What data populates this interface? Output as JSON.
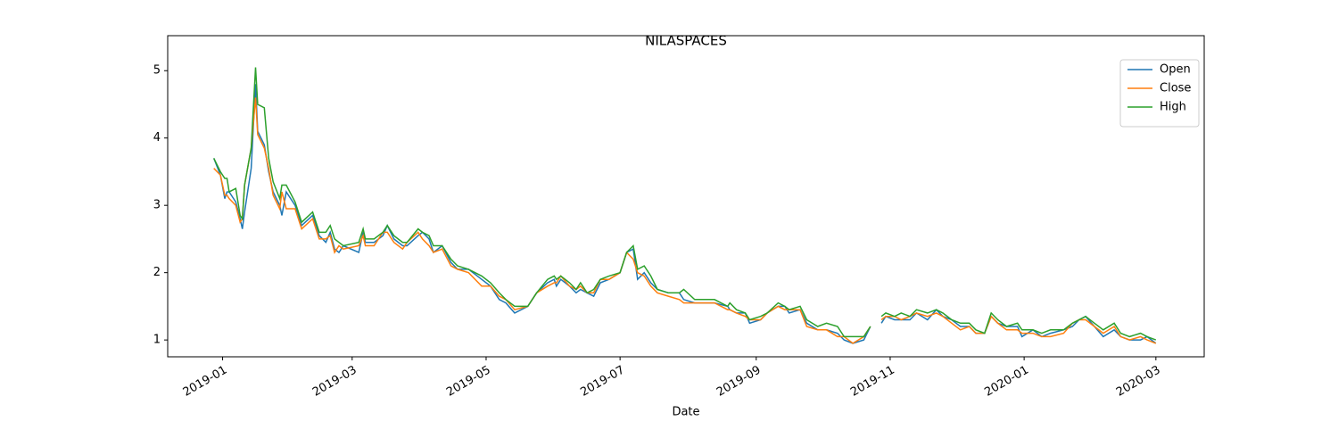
{
  "chart_data": {
    "type": "line",
    "title": "NILASPACES",
    "x_label": "Date",
    "x": [
      "2018-12-28",
      "2018-12-31",
      "2019-01-02",
      "2019-01-03",
      "2019-01-04",
      "2019-01-07",
      "2019-01-09",
      "2019-01-10",
      "2019-01-11",
      "2019-01-14",
      "2019-01-16",
      "2019-01-17",
      "2019-01-20",
      "2019-01-22",
      "2019-01-24",
      "2019-01-27",
      "2019-01-28",
      "2019-01-30",
      "2019-02-03",
      "2019-02-06",
      "2019-02-11",
      "2019-02-14",
      "2019-02-17",
      "2019-02-19",
      "2019-02-21",
      "2019-02-23",
      "2019-02-25",
      "2019-03-04",
      "2019-03-06",
      "2019-03-07",
      "2019-03-11",
      "2019-03-15",
      "2019-03-17",
      "2019-03-20",
      "2019-03-24",
      "2019-03-26",
      "2019-03-31",
      "2019-04-02",
      "2019-04-05",
      "2019-04-07",
      "2019-04-11",
      "2019-04-15",
      "2019-04-18",
      "2019-04-23",
      "2019-04-29",
      "2019-05-03",
      "2019-05-07",
      "2019-05-10",
      "2019-05-14",
      "2019-05-20",
      "2019-05-24",
      "2019-05-29",
      "2019-06-01",
      "2019-06-02",
      "2019-06-04",
      "2019-06-08",
      "2019-06-11",
      "2019-06-13",
      "2019-06-16",
      "2019-06-19",
      "2019-06-22",
      "2019-06-26",
      "2019-07-01",
      "2019-07-04",
      "2019-07-07",
      "2019-07-09",
      "2019-07-12",
      "2019-07-15",
      "2019-07-18",
      "2019-07-23",
      "2019-07-28",
      "2019-07-30",
      "2019-08-04",
      "2019-08-13",
      "2019-08-19",
      "2019-08-20",
      "2019-08-23",
      "2019-08-27",
      "2019-08-29",
      "2019-09-03",
      "2019-09-06",
      "2019-09-11",
      "2019-09-14",
      "2019-09-16",
      "2019-09-21",
      "2019-09-24",
      "2019-09-29",
      "2019-10-03",
      "2019-10-08",
      "2019-10-11",
      "2019-10-15",
      "2019-10-20",
      "2019-10-23",
      "2019-10-25",
      "2019-10-28",
      "2019-10-30",
      "2019-11-03",
      "2019-11-06",
      "2019-11-10",
      "2019-11-13",
      "2019-11-18",
      "2019-11-22",
      "2019-11-25",
      "2019-11-29",
      "2019-12-03",
      "2019-12-07",
      "2019-12-10",
      "2019-12-14",
      "2019-12-17",
      "2019-12-20",
      "2019-12-24",
      "2019-12-29",
      "2019-12-31",
      "2020-01-05",
      "2020-01-09",
      "2020-01-13",
      "2020-01-19",
      "2020-01-23",
      "2020-01-26",
      "2020-01-29",
      "2020-02-02",
      "2020-02-06",
      "2020-02-11",
      "2020-02-14",
      "2020-02-18",
      "2020-02-23",
      "2020-02-26",
      "2020-03-01"
    ],
    "series": [
      {
        "name": "Open",
        "color": "#1f77b4",
        "values": [
          3.7,
          3.45,
          3.1,
          3.2,
          3.2,
          3.05,
          2.8,
          2.65,
          2.9,
          3.55,
          4.8,
          4.1,
          3.9,
          3.5,
          3.2,
          3.0,
          2.85,
          3.2,
          3.0,
          2.7,
          2.85,
          2.55,
          2.45,
          2.6,
          2.35,
          2.3,
          2.4,
          2.3,
          2.6,
          2.45,
          2.45,
          2.55,
          2.7,
          2.5,
          2.4,
          2.4,
          2.55,
          2.6,
          2.5,
          2.3,
          2.4,
          2.15,
          2.05,
          2.05,
          1.9,
          1.8,
          1.6,
          1.55,
          1.4,
          1.5,
          1.7,
          1.85,
          1.9,
          1.8,
          1.9,
          1.8,
          1.7,
          1.75,
          1.7,
          1.65,
          1.85,
          1.9,
          2.0,
          2.3,
          2.35,
          1.9,
          2.0,
          1.85,
          1.75,
          1.7,
          1.7,
          1.6,
          1.55,
          1.55,
          1.5,
          1.45,
          1.4,
          1.4,
          1.25,
          1.3,
          1.4,
          1.5,
          1.5,
          1.4,
          1.45,
          1.25,
          1.15,
          1.15,
          1.1,
          1.0,
          0.95,
          1.0,
          1.2,
          null,
          1.25,
          1.35,
          1.3,
          1.3,
          1.3,
          1.4,
          1.3,
          1.45,
          1.35,
          1.3,
          1.2,
          1.2,
          1.1,
          1.1,
          1.35,
          1.25,
          1.2,
          1.2,
          1.05,
          1.15,
          1.05,
          1.1,
          1.15,
          1.2,
          1.3,
          1.35,
          1.2,
          1.05,
          1.15,
          1.05,
          1.0,
          1.0,
          1.05,
          0.95
        ]
      },
      {
        "name": "Close",
        "color": "#ff7f0e",
        "values": [
          3.55,
          3.45,
          3.15,
          3.15,
          3.1,
          3.0,
          2.75,
          2.8,
          3.3,
          3.85,
          4.6,
          4.05,
          3.85,
          3.55,
          3.15,
          2.95,
          3.2,
          2.95,
          2.95,
          2.65,
          2.8,
          2.5,
          2.5,
          2.55,
          2.3,
          2.4,
          2.35,
          2.4,
          2.55,
          2.4,
          2.4,
          2.6,
          2.6,
          2.45,
          2.35,
          2.45,
          2.6,
          2.5,
          2.4,
          2.3,
          2.35,
          2.1,
          2.05,
          2.0,
          1.8,
          1.8,
          1.65,
          1.6,
          1.45,
          1.5,
          1.7,
          1.8,
          1.85,
          1.85,
          1.95,
          1.8,
          1.75,
          1.8,
          1.7,
          1.7,
          1.9,
          1.9,
          2.0,
          2.3,
          2.2,
          2.0,
          1.95,
          1.8,
          1.7,
          1.65,
          1.6,
          1.55,
          1.55,
          1.55,
          1.45,
          1.45,
          1.4,
          1.35,
          1.3,
          1.3,
          1.4,
          1.5,
          1.45,
          1.45,
          1.45,
          1.2,
          1.15,
          1.15,
          1.05,
          1.05,
          0.95,
          1.05,
          1.2,
          null,
          1.3,
          1.35,
          1.35,
          1.3,
          1.35,
          1.4,
          1.35,
          1.4,
          1.35,
          1.25,
          1.15,
          1.2,
          1.1,
          1.1,
          1.35,
          1.25,
          1.15,
          1.15,
          1.1,
          1.1,
          1.05,
          1.05,
          1.1,
          1.25,
          1.3,
          1.3,
          1.2,
          1.1,
          1.2,
          1.05,
          1.0,
          1.05,
          1.0,
          0.95
        ]
      },
      {
        "name": "High",
        "color": "#2ca02c",
        "values": [
          3.7,
          3.5,
          3.4,
          3.4,
          3.2,
          3.25,
          2.85,
          2.8,
          3.3,
          3.85,
          5.05,
          4.5,
          4.45,
          3.7,
          3.35,
          3.1,
          3.3,
          3.3,
          3.05,
          2.75,
          2.9,
          2.6,
          2.6,
          2.7,
          2.5,
          2.45,
          2.4,
          2.45,
          2.65,
          2.5,
          2.5,
          2.6,
          2.7,
          2.55,
          2.45,
          2.45,
          2.65,
          2.6,
          2.55,
          2.4,
          2.4,
          2.2,
          2.1,
          2.05,
          1.95,
          1.85,
          1.7,
          1.6,
          1.5,
          1.5,
          1.7,
          1.9,
          1.95,
          1.9,
          1.95,
          1.85,
          1.75,
          1.85,
          1.7,
          1.75,
          1.9,
          1.95,
          2.0,
          2.3,
          2.4,
          2.05,
          2.1,
          1.95,
          1.75,
          1.7,
          1.7,
          1.75,
          1.6,
          1.6,
          1.5,
          1.55,
          1.45,
          1.4,
          1.3,
          1.35,
          1.4,
          1.55,
          1.5,
          1.45,
          1.5,
          1.3,
          1.2,
          1.25,
          1.2,
          1.05,
          1.05,
          1.05,
          1.2,
          null,
          1.35,
          1.4,
          1.35,
          1.4,
          1.35,
          1.45,
          1.4,
          1.45,
          1.4,
          1.3,
          1.25,
          1.25,
          1.15,
          1.1,
          1.4,
          1.3,
          1.2,
          1.25,
          1.15,
          1.15,
          1.1,
          1.15,
          1.15,
          1.25,
          1.3,
          1.35,
          1.25,
          1.15,
          1.25,
          1.1,
          1.05,
          1.1,
          1.05,
          1.0
        ]
      }
    ],
    "xlim": [
      "2018-12-07",
      "2020-03-23"
    ],
    "xticks": [
      {
        "value": "2019-01-01",
        "label": "2019-01"
      },
      {
        "value": "2019-03-01",
        "label": "2019-03"
      },
      {
        "value": "2019-05-01",
        "label": "2019-05"
      },
      {
        "value": "2019-07-01",
        "label": "2019-07"
      },
      {
        "value": "2019-09-01",
        "label": "2019-09"
      },
      {
        "value": "2019-11-01",
        "label": "2019-11"
      },
      {
        "value": "2020-01-01",
        "label": "2020-01"
      },
      {
        "value": "2020-03-01",
        "label": "2020-03"
      }
    ],
    "ylim": [
      0.75,
      5.52
    ],
    "yticks": [
      1,
      2,
      3,
      4,
      5
    ],
    "grid": false,
    "legend": "upper right"
  }
}
